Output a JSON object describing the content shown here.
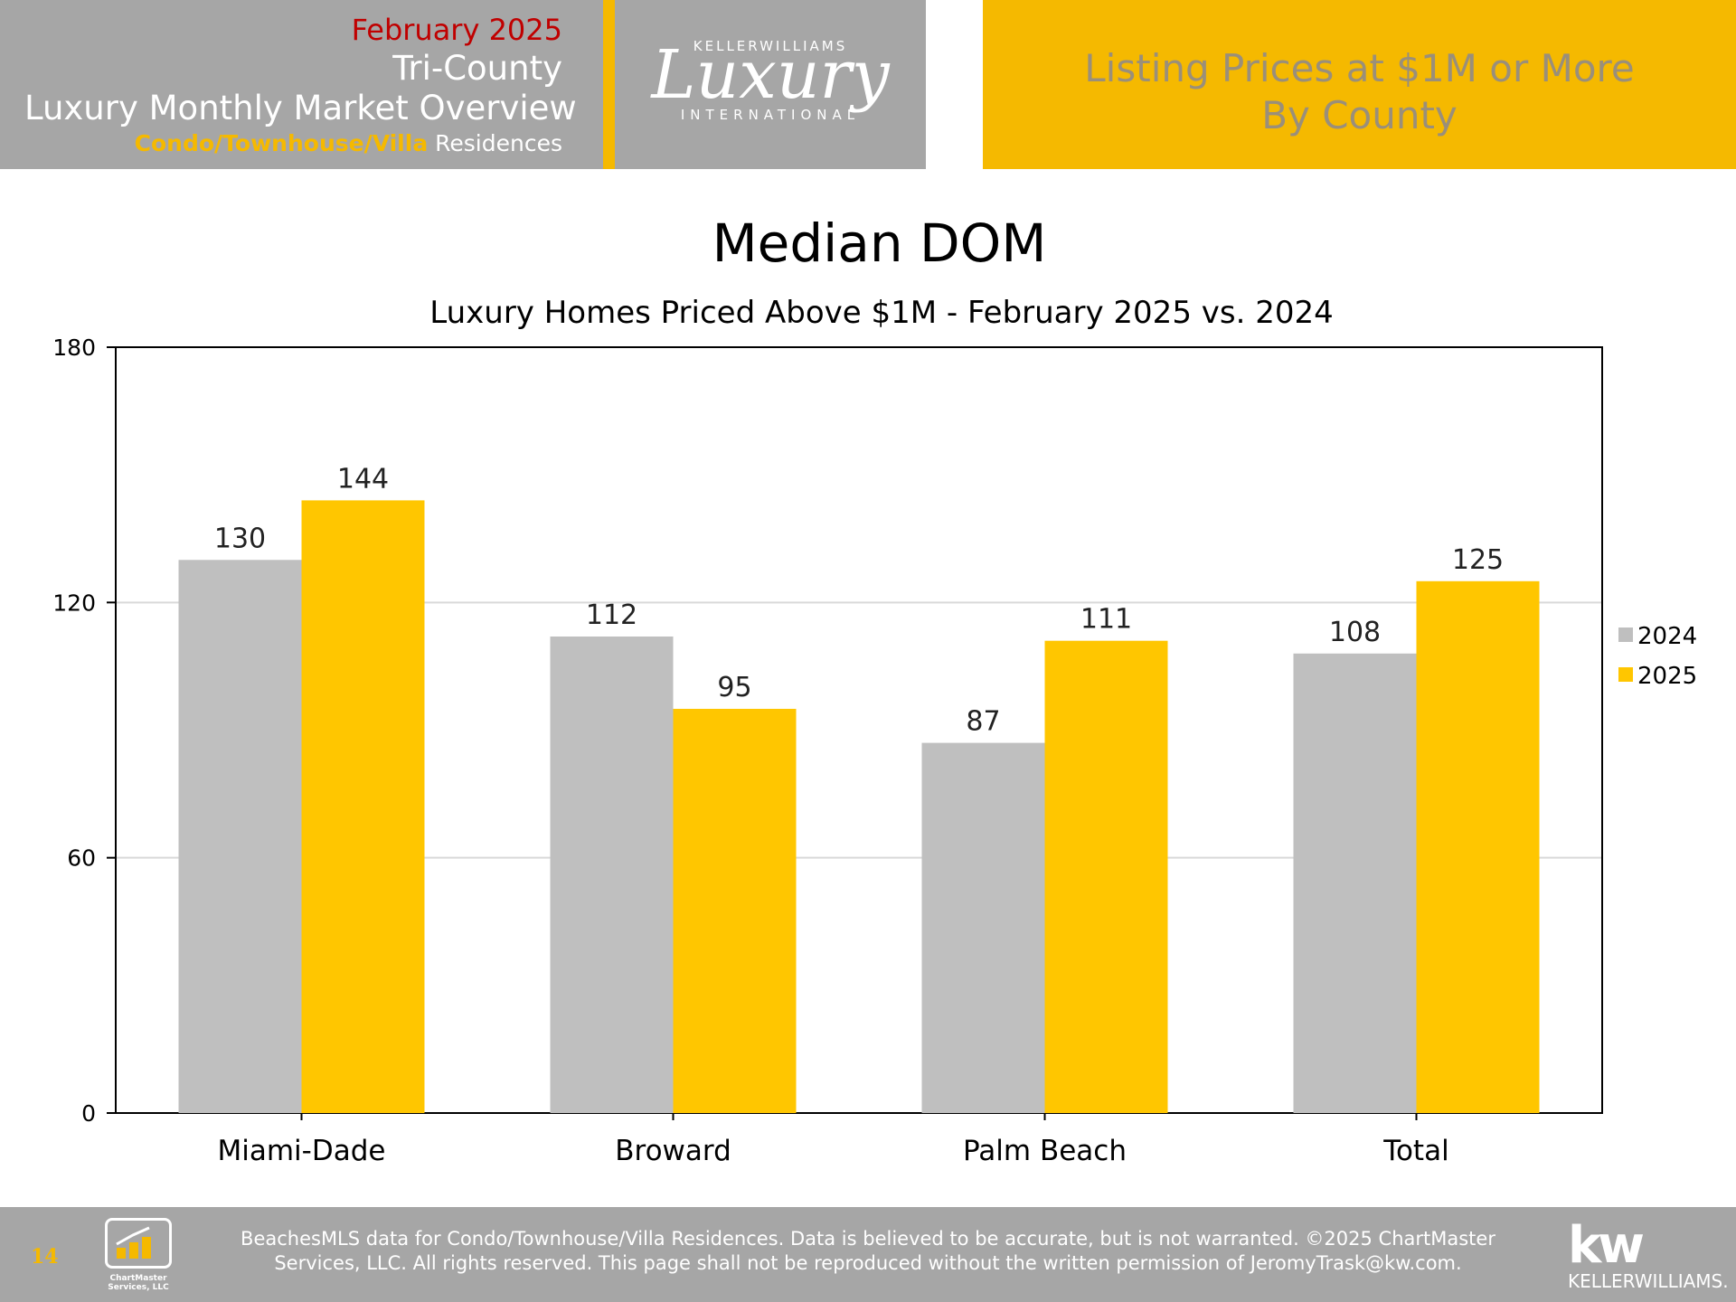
{
  "header": {
    "month": "February 2025",
    "region": "Tri-County",
    "title": "Luxury Monthly Market Overview",
    "subtitle_accent": "Condo/Townhouse/Villa",
    "subtitle_rest": " Residences",
    "logo_top": "KELLERWILLIAMS",
    "logo_main": "Luxury",
    "logo_bottom": "INTERNATIONAL",
    "right_line1": "Listing Prices at $1M or More",
    "right_line2": "By County"
  },
  "colors": {
    "series_2024": "#bfbfbf",
    "series_2025": "#ffc600",
    "accent": "#f5b900",
    "header_gray": "#a6a6a6",
    "month_red": "#c00000"
  },
  "chart_data": {
    "type": "bar",
    "title": "Median DOM",
    "subtitle": "Luxury Homes Priced Above $1M - February 2025 vs. 2024",
    "categories": [
      "Miami-Dade",
      "Broward",
      "Palm Beach",
      "Total"
    ],
    "series": [
      {
        "name": "2024",
        "values": [
          130,
          112,
          87,
          108
        ]
      },
      {
        "name": "2025",
        "values": [
          144,
          95,
          111,
          125
        ]
      }
    ],
    "ylim": [
      0,
      180
    ],
    "yticks": [
      0,
      60,
      120,
      180
    ],
    "xlabel": "",
    "ylabel": "",
    "grid": true,
    "legend": "right"
  },
  "footer": {
    "page_number": "14",
    "logo_text_1": "ChartMaster",
    "logo_text_2": "Services, LLC",
    "disclaimer_1": "BeachesMLS data for Condo/Townhouse/Villa Residences.  Data is believed to be accurate, but is not warranted.   ©2025  ChartMaster",
    "disclaimer_2": "Services, LLC.  All rights reserved. This page shall not be reproduced without the written permission of JeromyTrask@kw.com.",
    "brand_mark": "kw",
    "brand_word": "KELLERWILLIAMS."
  }
}
